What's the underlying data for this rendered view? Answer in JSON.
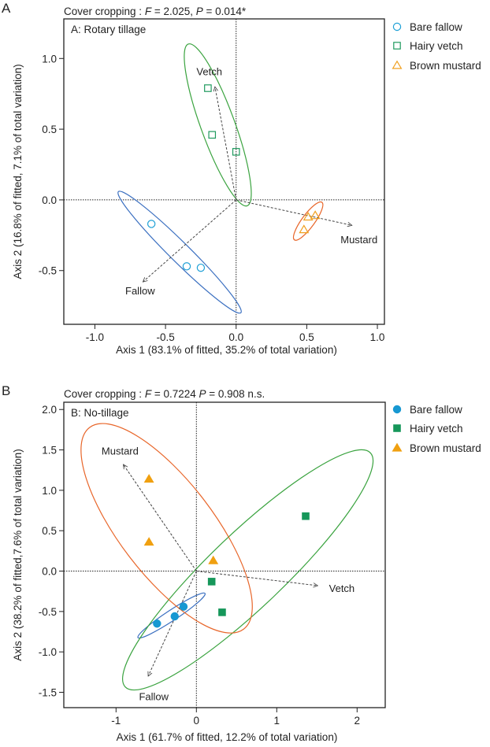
{
  "chart_data": [
    {
      "type": "scatter",
      "panel_letter": "A",
      "title_parts": [
        "Cover cropping : ",
        "F",
        " = 2.025, ",
        "P",
        " = 0.014*"
      ],
      "panel_label": "A: Rotary tillage",
      "xlabel": "Axis 1 (83.1% of fitted, 35.2% of total variation)",
      "ylabel": "Axis 2 (16.8% of fitted, 7.1% of total variation)",
      "xlim": [
        -1.22,
        1.05
      ],
      "ylim": [
        -0.88,
        1.28
      ],
      "xticks": [
        -1.0,
        -0.5,
        0.0,
        0.5,
        1.0
      ],
      "xtick_labels": [
        "-1.0",
        "-0.5",
        "0.0",
        "0.5",
        "1.0"
      ],
      "yticks": [
        -0.5,
        0.0,
        0.5,
        1.0
      ],
      "ytick_labels": [
        "-0.5",
        "0.0",
        "0.5",
        "1.0"
      ],
      "marker_fill": false,
      "series": [
        {
          "name": "Bare fallow",
          "marker": "circle",
          "color": "#1ea0d6",
          "ellipse_color": "#3a6fc0",
          "x": [
            -0.6,
            -0.35,
            -0.25
          ],
          "y": [
            -0.17,
            -0.47,
            -0.48
          ],
          "ellipse": {
            "cx": -0.4,
            "cy": -0.37,
            "a": 0.61,
            "b": 0.07,
            "angle": -44.7
          }
        },
        {
          "name": "Hairy vetch",
          "marker": "square",
          "color": "#1f9a5e",
          "ellipse_color": "#3aa33f",
          "x": [
            -0.2,
            -0.17,
            0.0
          ],
          "y": [
            0.79,
            0.46,
            0.34
          ],
          "ellipse": {
            "cx": -0.13,
            "cy": 0.53,
            "a": 0.61,
            "b": 0.12,
            "angle": 110
          }
        },
        {
          "name": "Brown mustard",
          "marker": "triangle",
          "color": "#f0a020",
          "ellipse_color": "#e8662a",
          "x": [
            0.51,
            0.56,
            0.48
          ],
          "y": [
            -0.12,
            -0.11,
            -0.21
          ],
          "ellipse": {
            "cx": 0.51,
            "cy": -0.15,
            "a": 0.165,
            "b": 0.045,
            "angle": 53.8
          }
        }
      ],
      "vectors": [
        {
          "label": "Vetch",
          "x": -0.15,
          "y": 0.8,
          "lx": -0.19,
          "ly": 0.91
        },
        {
          "label": "Mustard",
          "x": 0.82,
          "y": -0.18,
          "lx": 0.87,
          "ly": -0.28
        },
        {
          "label": "Fallow",
          "x": -0.66,
          "y": -0.58,
          "lx": -0.68,
          "ly": -0.64
        }
      ],
      "legend_position": "outside-top-right"
    },
    {
      "type": "scatter",
      "panel_letter": "B",
      "title_parts": [
        "Cover cropping : ",
        "F",
        " = 0.7224 ",
        "P",
        " = 0.908 n.s."
      ],
      "panel_label": "B: No-tillage",
      "xlabel": "Axis 1 (61.7% of fitted, 12.2% of total variation)",
      "ylabel": "Axis 2 (38.2% of fitted,7.6% of total variation)",
      "xlim": [
        -1.65,
        2.35
      ],
      "ylim": [
        -1.69,
        2.09
      ],
      "xticks": [
        -1,
        0,
        1,
        2
      ],
      "xtick_labels": [
        "-1",
        "0",
        "1",
        "2"
      ],
      "yticks": [
        -1.5,
        -1.0,
        -0.5,
        0.0,
        0.5,
        1.0,
        1.5,
        2.0
      ],
      "ytick_labels": [
        "-1.5",
        "-1.0",
        "-0.5",
        "0.0",
        "0.5",
        "1.0",
        "1.5",
        "2.0"
      ],
      "marker_fill": true,
      "series": [
        {
          "name": "Bare fallow",
          "marker": "circle",
          "color": "#1798d2",
          "ellipse_color": "#3a6fc0",
          "x": [
            -0.49,
            -0.27,
            -0.16
          ],
          "y": [
            -0.65,
            -0.56,
            -0.44
          ],
          "ellipse": {
            "cx": -0.31,
            "cy": -0.55,
            "a": 0.5,
            "b": 0.065,
            "angle": 33.4
          }
        },
        {
          "name": "Hairy vetch",
          "marker": "square",
          "color": "#16975a",
          "ellipse_color": "#3aa33f",
          "x": [
            1.36,
            0.19,
            0.32
          ],
          "y": [
            0.68,
            -0.13,
            -0.51
          ],
          "ellipse": {
            "cx": 0.64,
            "cy": 0.015,
            "a": 2.11,
            "b": 0.46,
            "angle": 43.7
          }
        },
        {
          "name": "Brown mustard",
          "marker": "triangle",
          "color": "#f0a010",
          "ellipse_color": "#e8662a",
          "x": [
            -0.59,
            -0.59,
            0.21
          ],
          "y": [
            1.14,
            0.36,
            0.13
          ],
          "ellipse": {
            "cx": -0.37,
            "cy": 0.53,
            "a": 1.58,
            "b": 0.58,
            "angle": -52.6
          }
        }
      ],
      "vectors": [
        {
          "label": "Mustard",
          "x": -0.91,
          "y": 1.32,
          "lx": -0.95,
          "ly": 1.49
        },
        {
          "label": "Vetch",
          "x": 1.51,
          "y": -0.18,
          "lx": 1.81,
          "ly": -0.21
        },
        {
          "label": "Fallow",
          "x": -0.6,
          "y": -1.3,
          "lx": -0.53,
          "ly": -1.55
        }
      ],
      "legend_position": "outside-top-right"
    }
  ]
}
